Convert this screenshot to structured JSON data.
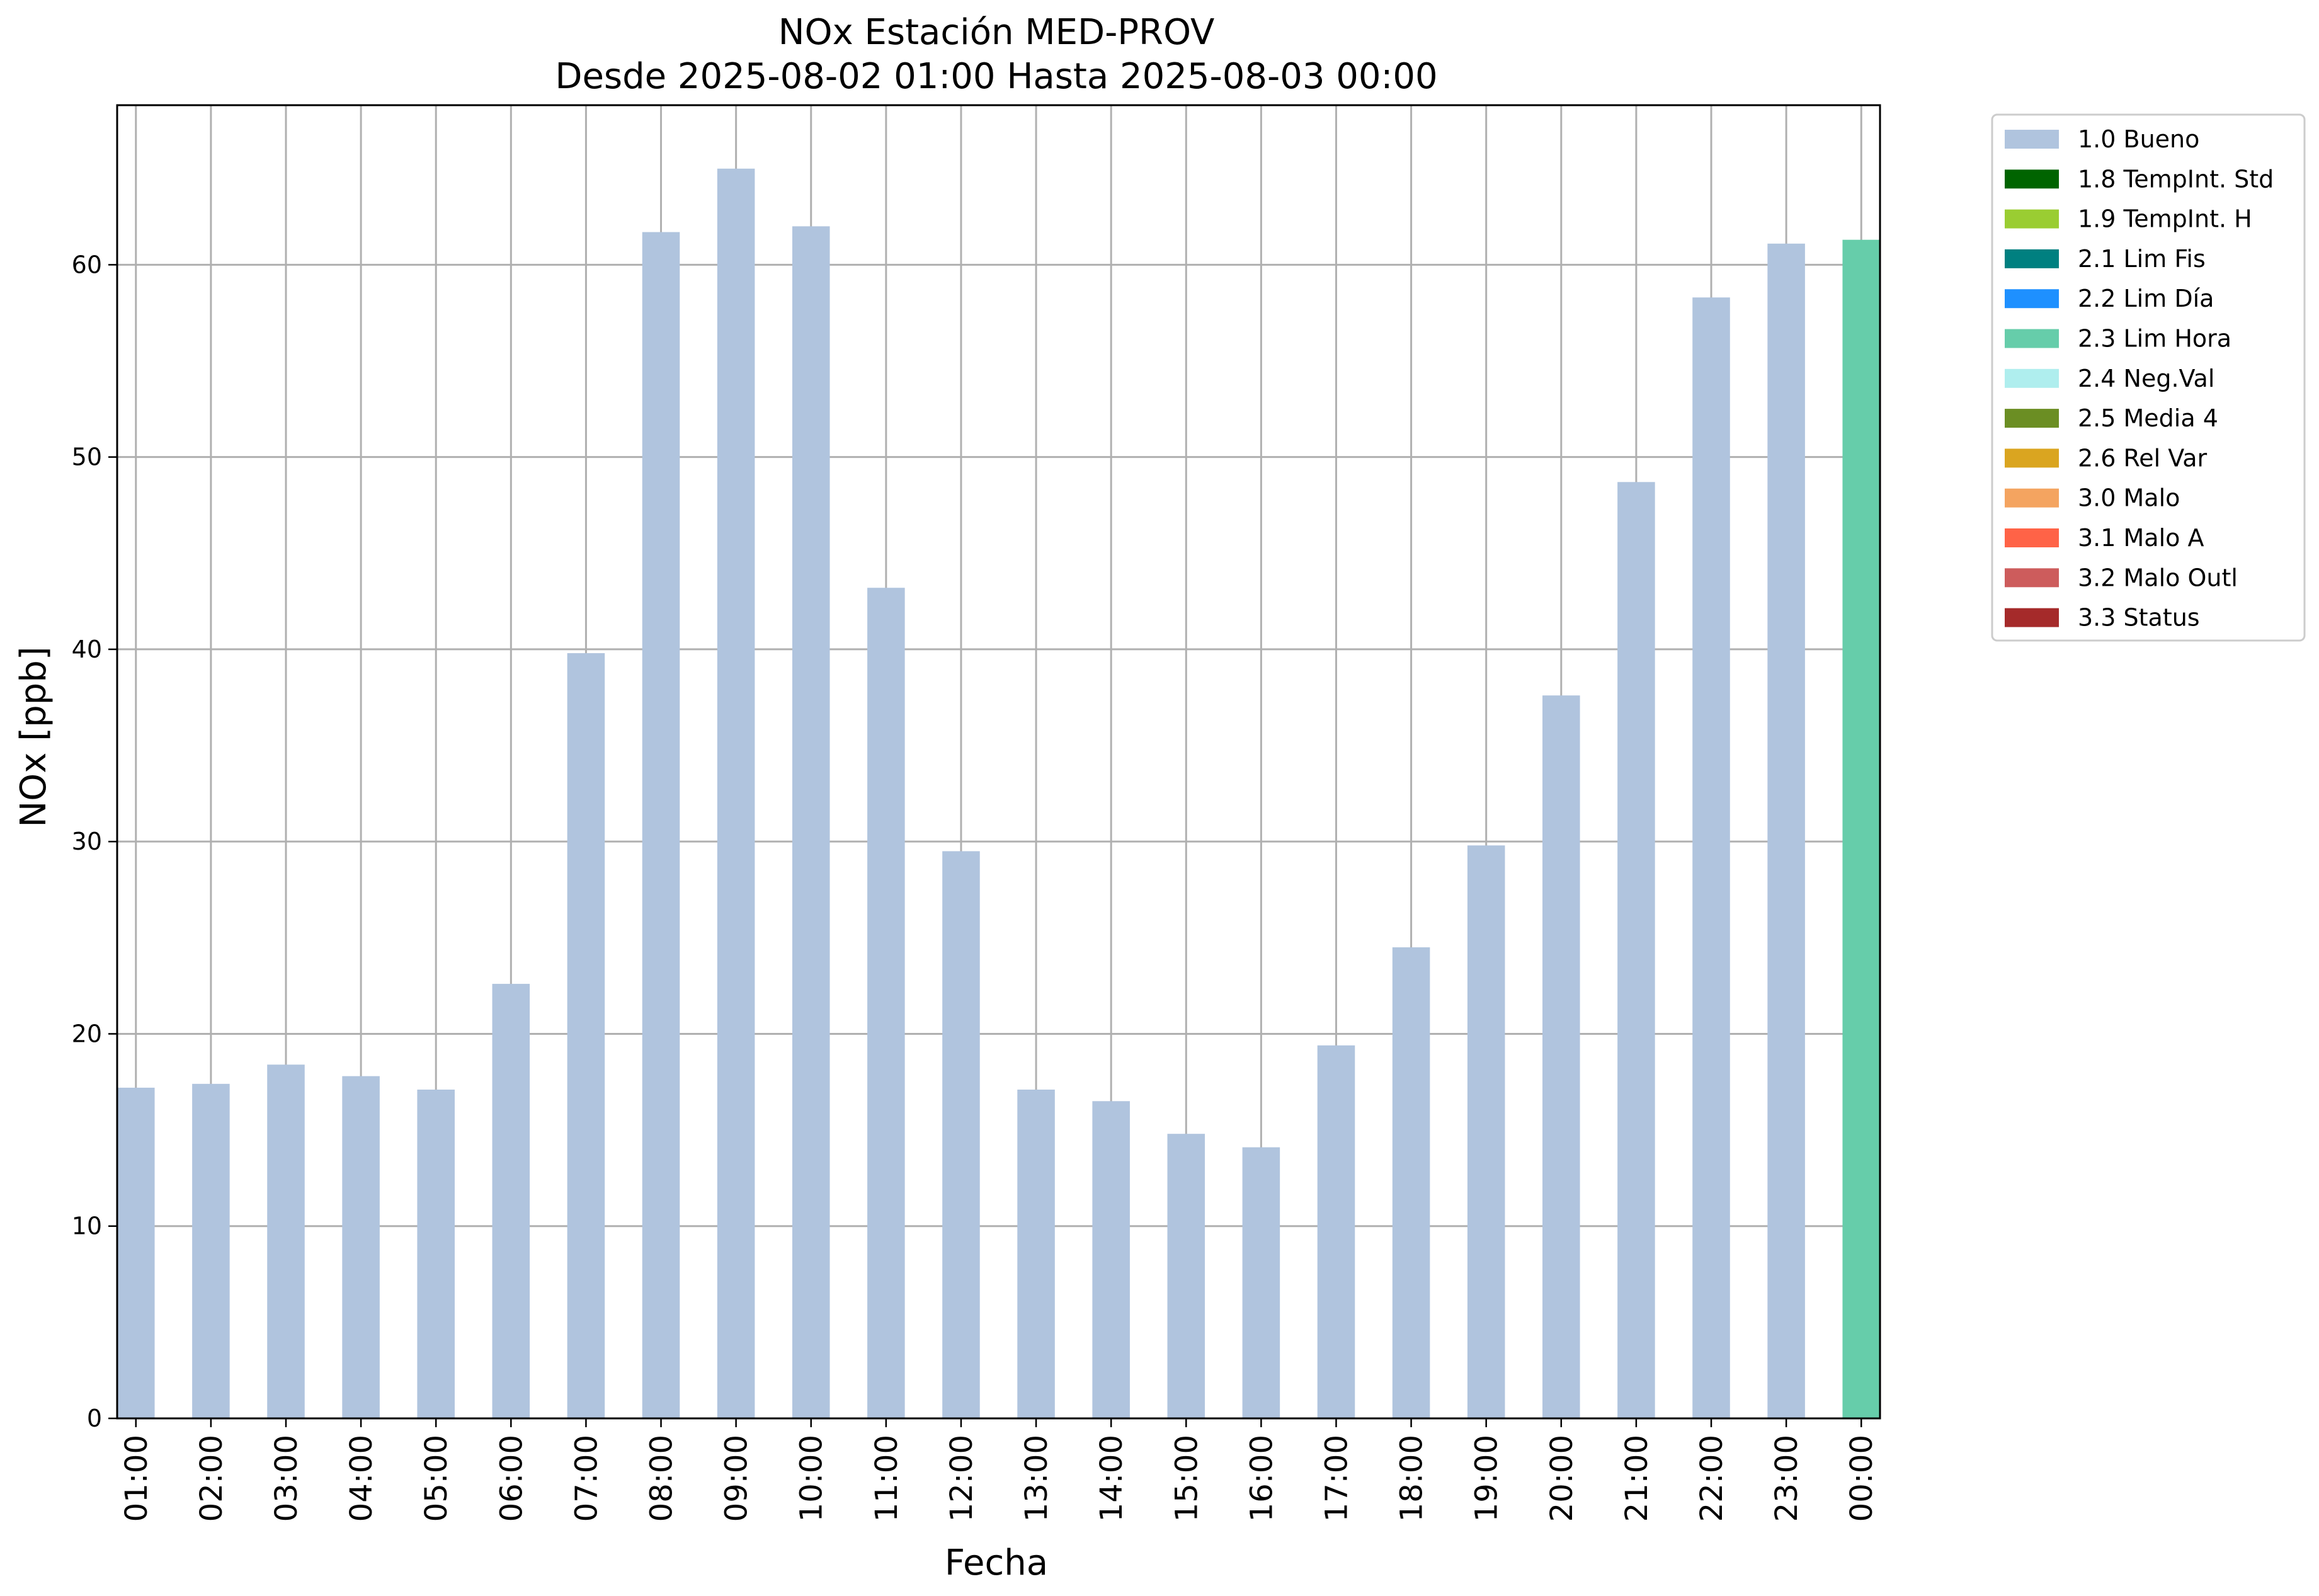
{
  "chart_data": {
    "type": "bar",
    "title": [
      "NOx Estación MED-PROV",
      "Desde 2025-08-02 01:00 Hasta 2025-08-03 00:00"
    ],
    "xlabel": "Fecha",
    "ylabel": "NOx [ppb]",
    "ylim": [
      0,
      68.3
    ],
    "yticks": [
      0,
      10,
      20,
      30,
      40,
      50,
      60
    ],
    "grid": true,
    "legend_position": "outside-top-right",
    "categories": [
      "01:00",
      "02:00",
      "03:00",
      "04:00",
      "05:00",
      "06:00",
      "07:00",
      "08:00",
      "09:00",
      "10:00",
      "11:00",
      "12:00",
      "13:00",
      "14:00",
      "15:00",
      "16:00",
      "17:00",
      "18:00",
      "19:00",
      "20:00",
      "21:00",
      "22:00",
      "23:00",
      "00:00"
    ],
    "values": [
      17.2,
      17.4,
      18.4,
      17.8,
      17.1,
      22.6,
      39.8,
      61.7,
      65.0,
      62.0,
      43.2,
      29.5,
      17.1,
      16.5,
      14.8,
      14.1,
      19.4,
      24.5,
      29.8,
      37.6,
      48.7,
      58.3,
      61.1,
      61.3
    ],
    "flags": [
      "1.0 Bueno",
      "1.0 Bueno",
      "1.0 Bueno",
      "1.0 Bueno",
      "1.0 Bueno",
      "1.0 Bueno",
      "1.0 Bueno",
      "1.0 Bueno",
      "1.0 Bueno",
      "1.0 Bueno",
      "1.0 Bueno",
      "1.0 Bueno",
      "1.0 Bueno",
      "1.0 Bueno",
      "1.0 Bueno",
      "1.0 Bueno",
      "1.0 Bueno",
      "1.0 Bueno",
      "1.0 Bueno",
      "1.0 Bueno",
      "1.0 Bueno",
      "1.0 Bueno",
      "1.0 Bueno",
      "2.3 Lim Hora"
    ],
    "legend": [
      {
        "label": "1.0 Bueno",
        "color": "#b0c4de"
      },
      {
        "label": "1.8 TempInt. Std",
        "color": "#006400"
      },
      {
        "label": "1.9 TempInt. H",
        "color": "#9acd32"
      },
      {
        "label": "2.1 Lim Fis",
        "color": "#008080"
      },
      {
        "label": "2.2 Lim Día",
        "color": "#1e90ff"
      },
      {
        "label": "2.3 Lim Hora",
        "color": "#66cdaa"
      },
      {
        "label": "2.4 Neg.Val",
        "color": "#afeeee"
      },
      {
        "label": "2.5 Media 4",
        "color": "#6b8e23"
      },
      {
        "label": "2.6 Rel Var",
        "color": "#daa520"
      },
      {
        "label": "3.0 Malo",
        "color": "#f4a460"
      },
      {
        "label": "3.1 Malo A",
        "color": "#ff6347"
      },
      {
        "label": "3.2 Malo Outl",
        "color": "#cd5c5c"
      },
      {
        "label": "3.3 Status",
        "color": "#a52a2a"
      }
    ]
  }
}
